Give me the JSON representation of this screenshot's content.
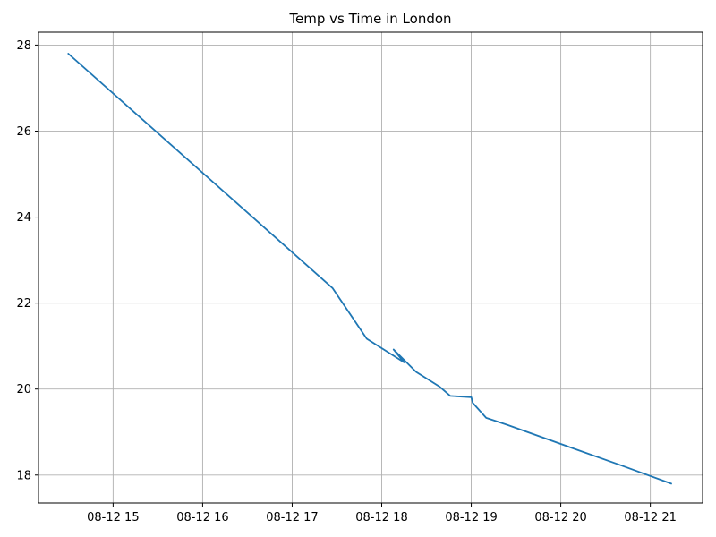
{
  "chart_data": {
    "type": "line",
    "title": "Temp vs Time in London",
    "xlabel": "",
    "ylabel": "",
    "x_axis_kind": "datetime",
    "xlim": [
      "2025-08-12T14:10",
      "2025-08-12T21:35"
    ],
    "ylim": [
      17.35,
      28.3
    ],
    "x_ticks": [
      {
        "value": "2025-08-12T15:00",
        "label": "08-12 15"
      },
      {
        "value": "2025-08-12T16:00",
        "label": "08-12 16"
      },
      {
        "value": "2025-08-12T17:00",
        "label": "08-12 17"
      },
      {
        "value": "2025-08-12T18:00",
        "label": "08-12 18"
      },
      {
        "value": "2025-08-12T19:00",
        "label": "08-12 19"
      },
      {
        "value": "2025-08-12T20:00",
        "label": "08-12 20"
      },
      {
        "value": "2025-08-12T21:00",
        "label": "08-12 21"
      }
    ],
    "y_ticks": [
      18,
      20,
      22,
      24,
      26,
      28
    ],
    "grid": true,
    "legend": null,
    "series": [
      {
        "color": "#1f77b4",
        "points": [
          {
            "x": "2025-08-12T14:30",
            "y": 27.8
          },
          {
            "x": "2025-08-12T17:27",
            "y": 22.35
          },
          {
            "x": "2025-08-12T17:50",
            "y": 21.17
          },
          {
            "x": "2025-08-12T18:15",
            "y": 20.62
          },
          {
            "x": "2025-08-12T18:08",
            "y": 20.92
          },
          {
            "x": "2025-08-12T18:23",
            "y": 20.4
          },
          {
            "x": "2025-08-12T18:39",
            "y": 20.05
          },
          {
            "x": "2025-08-12T18:46",
            "y": 19.84
          },
          {
            "x": "2025-08-12T19:00",
            "y": 19.81
          },
          {
            "x": "2025-08-12T19:01",
            "y": 19.68
          },
          {
            "x": "2025-08-12T19:10",
            "y": 19.33
          },
          {
            "x": "2025-08-12T19:24",
            "y": 19.17
          },
          {
            "x": "2025-08-12T20:10",
            "y": 18.6
          },
          {
            "x": "2025-08-12T20:40",
            "y": 18.23
          },
          {
            "x": "2025-08-12T21:14",
            "y": 17.8
          }
        ]
      }
    ]
  }
}
